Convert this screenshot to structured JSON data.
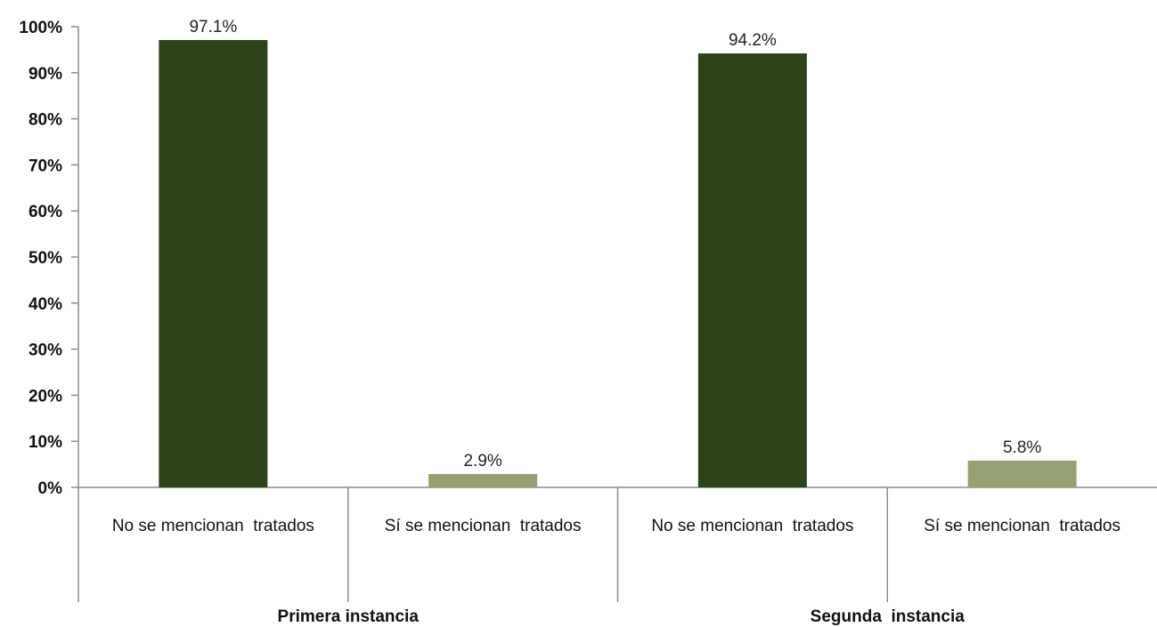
{
  "chart_data": {
    "type": "bar",
    "title": "",
    "xlabel": "",
    "ylabel": "",
    "ylim": [
      0,
      100
    ],
    "y_ticks": [
      0,
      10,
      20,
      30,
      40,
      50,
      60,
      70,
      80,
      90,
      100
    ],
    "y_tick_labels": [
      "0%",
      "10%",
      "20%",
      "30%",
      "40%",
      "50%",
      "60%",
      "70%",
      "80%",
      "90%",
      "100%"
    ],
    "grid": false,
    "legend": "none",
    "groups": [
      {
        "label": "Primera instancia",
        "bars": [
          {
            "category": "No se mencionan  tratados",
            "value": 97.1,
            "label": "97.1%",
            "color": "#2d4419"
          },
          {
            "category": "Sí se mencionan  tratados",
            "value": 2.9,
            "label": "2.9%",
            "color": "#96a171"
          }
        ]
      },
      {
        "label": "Segunda  instancia",
        "bars": [
          {
            "category": "No se mencionan  tratados",
            "value": 94.2,
            "label": "94.2%",
            "color": "#2d4419"
          },
          {
            "category": "Sí se mencionan  tratados",
            "value": 5.8,
            "label": "5.8%",
            "color": "#96a171"
          }
        ]
      }
    ]
  }
}
